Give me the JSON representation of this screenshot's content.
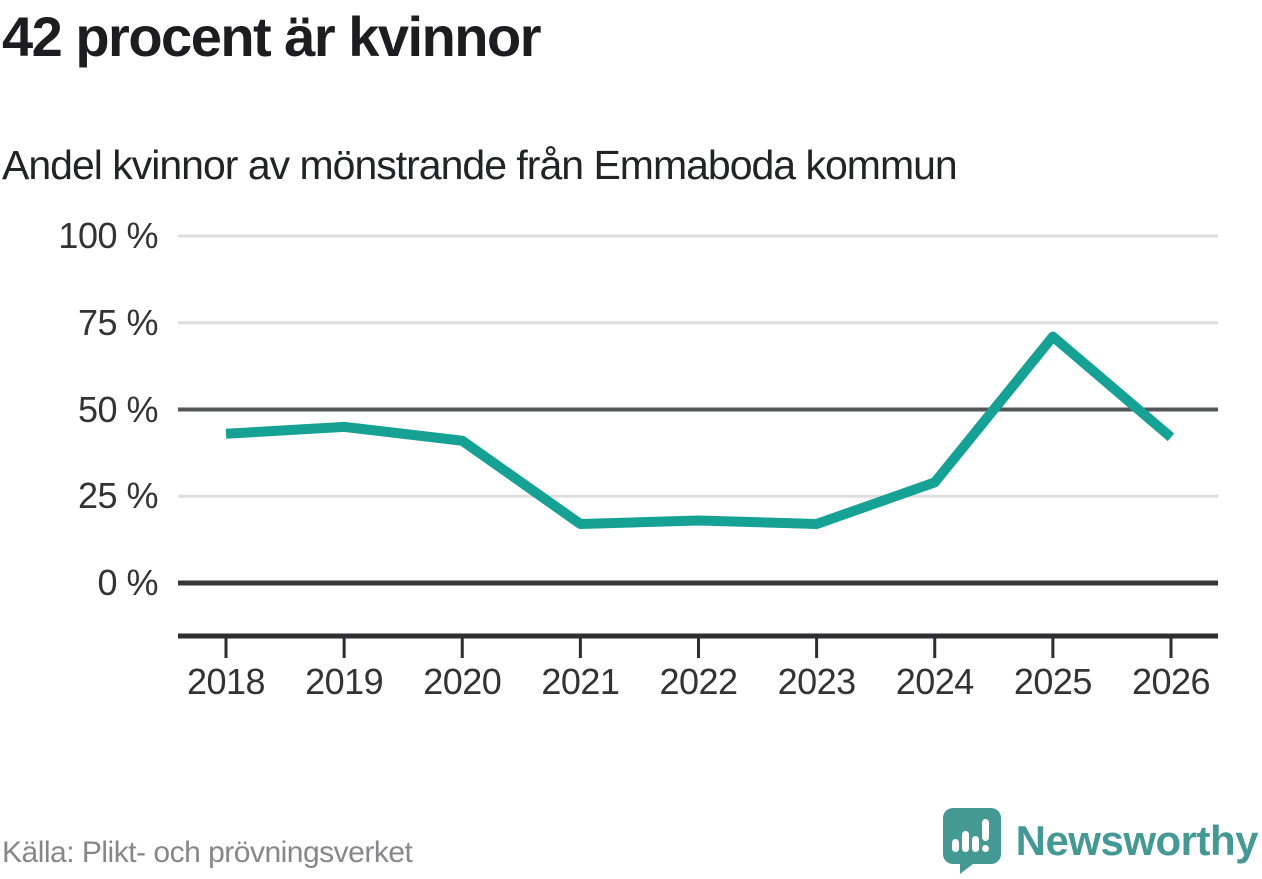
{
  "header": {
    "title": "42 procent är kvinnor",
    "subtitle": "Andel kvinnor av mönstrande från Emmaboda kommun"
  },
  "footer": {
    "source": "Källa: Plikt- och prövningsverket",
    "brand": "Newsworthy"
  },
  "colors": {
    "line": "#16A195",
    "brand": "#459994",
    "grid_light": "#DEDEDE",
    "grid_mid": "#55565A",
    "grid_dark": "#37373A",
    "axis": "#2E2E31",
    "text_dark": "#333333",
    "text_source": "#87878B"
  },
  "chart_data": {
    "type": "line",
    "title": "42 procent är kvinnor",
    "subtitle": "Andel kvinnor av mönstrande från Emmaboda kommun",
    "source": "Källa: Plikt- och prövningsverket",
    "x": [
      2018,
      2019,
      2020,
      2021,
      2022,
      2023,
      2024,
      2025,
      2026
    ],
    "series": [
      {
        "name": "Andel kvinnor av mönstrande",
        "values": [
          43,
          45,
          41,
          17,
          18,
          17,
          29,
          71,
          42
        ]
      }
    ],
    "xlabel": "",
    "ylabel": "",
    "ylim": [
      0,
      100
    ],
    "yticks": [
      0,
      25,
      50,
      75,
      100
    ],
    "ytick_suffix": " %",
    "grid": "horizontal",
    "gridline_emphasis": {
      "0": "strong",
      "50": "medium"
    },
    "legend": "none",
    "line_color": "#16A195",
    "line_width": 10
  }
}
